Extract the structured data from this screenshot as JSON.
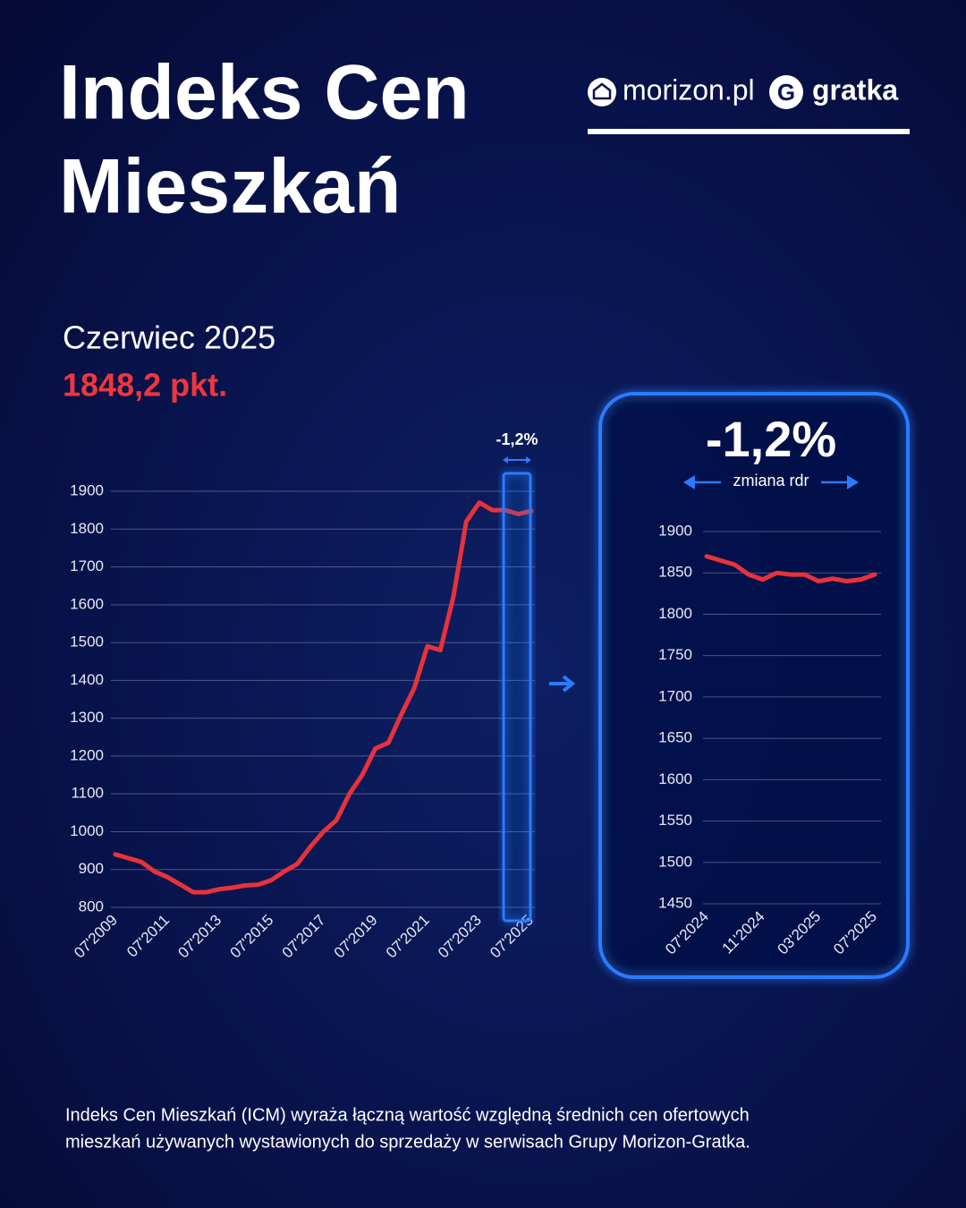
{
  "header": {
    "title_lines": [
      "Indeks Cen",
      "Mieszkań"
    ],
    "logos": [
      "morizon.pl",
      "gratka"
    ]
  },
  "period": "Czerwiec 2025",
  "index_value": "1848,2 pkt.",
  "highlight_label": "-1,2%",
  "panel": {
    "change": "-1,2%",
    "change_caption": "zmiana rdr"
  },
  "footnote": [
    "Indeks Cen Mieszkań (ICM) wyraża łączną wartość względną średnich cen ofertowych",
    "mieszkań używanych wystawionych do sprzedaży w serwisach Grupy Morizon-Gratka."
  ],
  "chart_data": [
    {
      "type": "line",
      "color": "#e8323a",
      "grid": true,
      "categories": [
        "07'2009",
        null,
        null,
        null,
        "07'2011",
        null,
        null,
        null,
        "07'2013",
        null,
        null,
        null,
        "07'2015",
        null,
        null,
        null,
        "07'2017",
        null,
        null,
        null,
        "07'2019",
        null,
        null,
        null,
        "07'2021",
        null,
        null,
        null,
        "07'2023",
        null,
        null,
        null,
        "07'2025"
      ],
      "values": [
        940,
        930,
        920,
        895,
        880,
        860,
        840,
        840,
        848,
        852,
        858,
        860,
        872,
        895,
        915,
        960,
        1000,
        1030,
        1100,
        1150,
        1220,
        1235,
        1310,
        1380,
        1490,
        1480,
        1620,
        1820,
        1870,
        1850,
        1850,
        1840,
        1848
      ],
      "ylim": [
        800,
        1900
      ],
      "yticks": [
        800,
        900,
        1000,
        1100,
        1200,
        1300,
        1400,
        1500,
        1600,
        1700,
        1800,
        1900
      ]
    },
    {
      "type": "line",
      "color": "#e8323a",
      "grid": true,
      "categories": [
        "07'2024",
        null,
        null,
        null,
        "11'2024",
        null,
        null,
        null,
        "03'2025",
        null,
        null,
        null,
        "07'2025"
      ],
      "values": [
        1870,
        1865,
        1860,
        1848,
        1842,
        1850,
        1848,
        1848,
        1840,
        1843,
        1840,
        1842,
        1848
      ],
      "ylim": [
        1450,
        1900
      ],
      "yticks": [
        1450,
        1500,
        1550,
        1600,
        1650,
        1700,
        1750,
        1800,
        1850,
        1900
      ]
    }
  ]
}
